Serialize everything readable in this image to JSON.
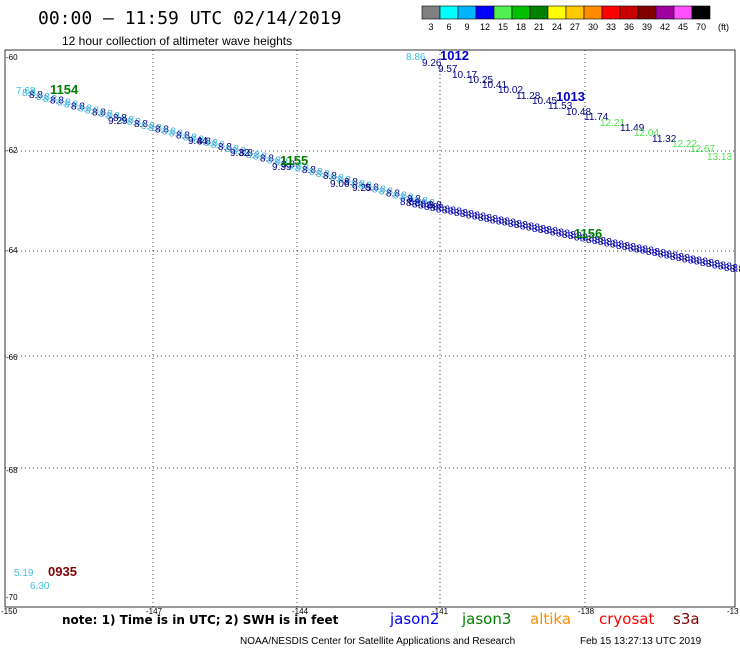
{
  "header": {
    "title": "00:00 – 11:59 UTC 02/14/2019",
    "subtitle": "12 hour collection of altimeter wave heights"
  },
  "legend": {
    "unit": "(ft)",
    "bins": [
      {
        "label": "3",
        "color": "#808080"
      },
      {
        "label": "6",
        "color": "#00ffff"
      },
      {
        "label": "9",
        "color": "#00b4ff"
      },
      {
        "label": "12",
        "color": "#0000ff"
      },
      {
        "label": "15",
        "color": "#50f050"
      },
      {
        "label": "18",
        "color": "#00c000"
      },
      {
        "label": "21",
        "color": "#008000"
      },
      {
        "label": "24",
        "color": "#ffff00"
      },
      {
        "label": "27",
        "color": "#ffc800"
      },
      {
        "label": "30",
        "color": "#ff8c00"
      },
      {
        "label": "33",
        "color": "#ff0000"
      },
      {
        "label": "36",
        "color": "#c80000"
      },
      {
        "label": "39",
        "color": "#800000"
      },
      {
        "label": "42",
        "color": "#a000a0"
      },
      {
        "label": "45",
        "color": "#ff50ff"
      },
      {
        "label": "70",
        "color": "#000000"
      }
    ]
  },
  "axes": {
    "lat_labels": [
      "-60",
      "-62",
      "-64",
      "-66",
      "-68",
      "-70"
    ],
    "lon_labels": [
      "-150",
      "-147",
      "-144",
      "-141",
      "-138",
      "-13"
    ]
  },
  "passes": [
    {
      "time": "1154",
      "color": "#008000"
    },
    {
      "time": "1155",
      "color": "#008000"
    },
    {
      "time": "1156",
      "color": "#008000"
    },
    {
      "time": "1012",
      "color": "#0000c8"
    },
    {
      "time": "1013",
      "color": "#0000c8"
    },
    {
      "time": "0935",
      "color": "#800000"
    }
  ],
  "readings": [
    {
      "text": "7.68",
      "color": "#40c0e0"
    },
    {
      "text": "9.29",
      "color": "#000080"
    },
    {
      "text": "9.44",
      "color": "#000080"
    },
    {
      "text": "9.32",
      "color": "#000080"
    },
    {
      "text": "9.39",
      "color": "#000080"
    },
    {
      "text": "9.06",
      "color": "#000080"
    },
    {
      "text": "9.25",
      "color": "#000080"
    },
    {
      "text": "8.86",
      "color": "#40c0e0"
    },
    {
      "text": "9.26",
      "color": "#000080"
    },
    {
      "text": "9.57",
      "color": "#000080"
    },
    {
      "text": "10.17",
      "color": "#000080"
    },
    {
      "text": "10.25",
      "color": "#000080"
    },
    {
      "text": "10.41",
      "color": "#000080"
    },
    {
      "text": "10.02",
      "color": "#000080"
    },
    {
      "text": "11.28",
      "color": "#000080"
    },
    {
      "text": "10.45",
      "color": "#000080"
    },
    {
      "text": "11.53",
      "color": "#000080"
    },
    {
      "text": "10.48",
      "color": "#000080"
    },
    {
      "text": "11.74",
      "color": "#000080"
    },
    {
      "text": "12.21",
      "color": "#50e050"
    },
    {
      "text": "11.49",
      "color": "#000080"
    },
    {
      "text": "12.04",
      "color": "#50e050"
    },
    {
      "text": "11.32",
      "color": "#000080"
    },
    {
      "text": "12.22",
      "color": "#50e050"
    },
    {
      "text": "12.67",
      "color": "#50e050"
    },
    {
      "text": "13.13",
      "color": "#50e050"
    },
    {
      "text": "5.19",
      "color": "#40c0e0"
    },
    {
      "text": "6.30",
      "color": "#40c0e0"
    }
  ],
  "footer": {
    "note": "note: 1) Time is in UTC; 2) SWH is in feet",
    "satellites": [
      {
        "name": "jason2",
        "color": "#0000ff"
      },
      {
        "name": "jason3",
        "color": "#008000"
      },
      {
        "name": "altika",
        "color": "#ff8c00"
      },
      {
        "name": "cryosat",
        "color": "#ff0000"
      },
      {
        "name": "s3a",
        "color": "#800000"
      }
    ],
    "credit": "NOAA/NESDIS Center for Satellite Applications and Research",
    "timestamp": "Feb 15 13:27:13 UTC 2019"
  }
}
